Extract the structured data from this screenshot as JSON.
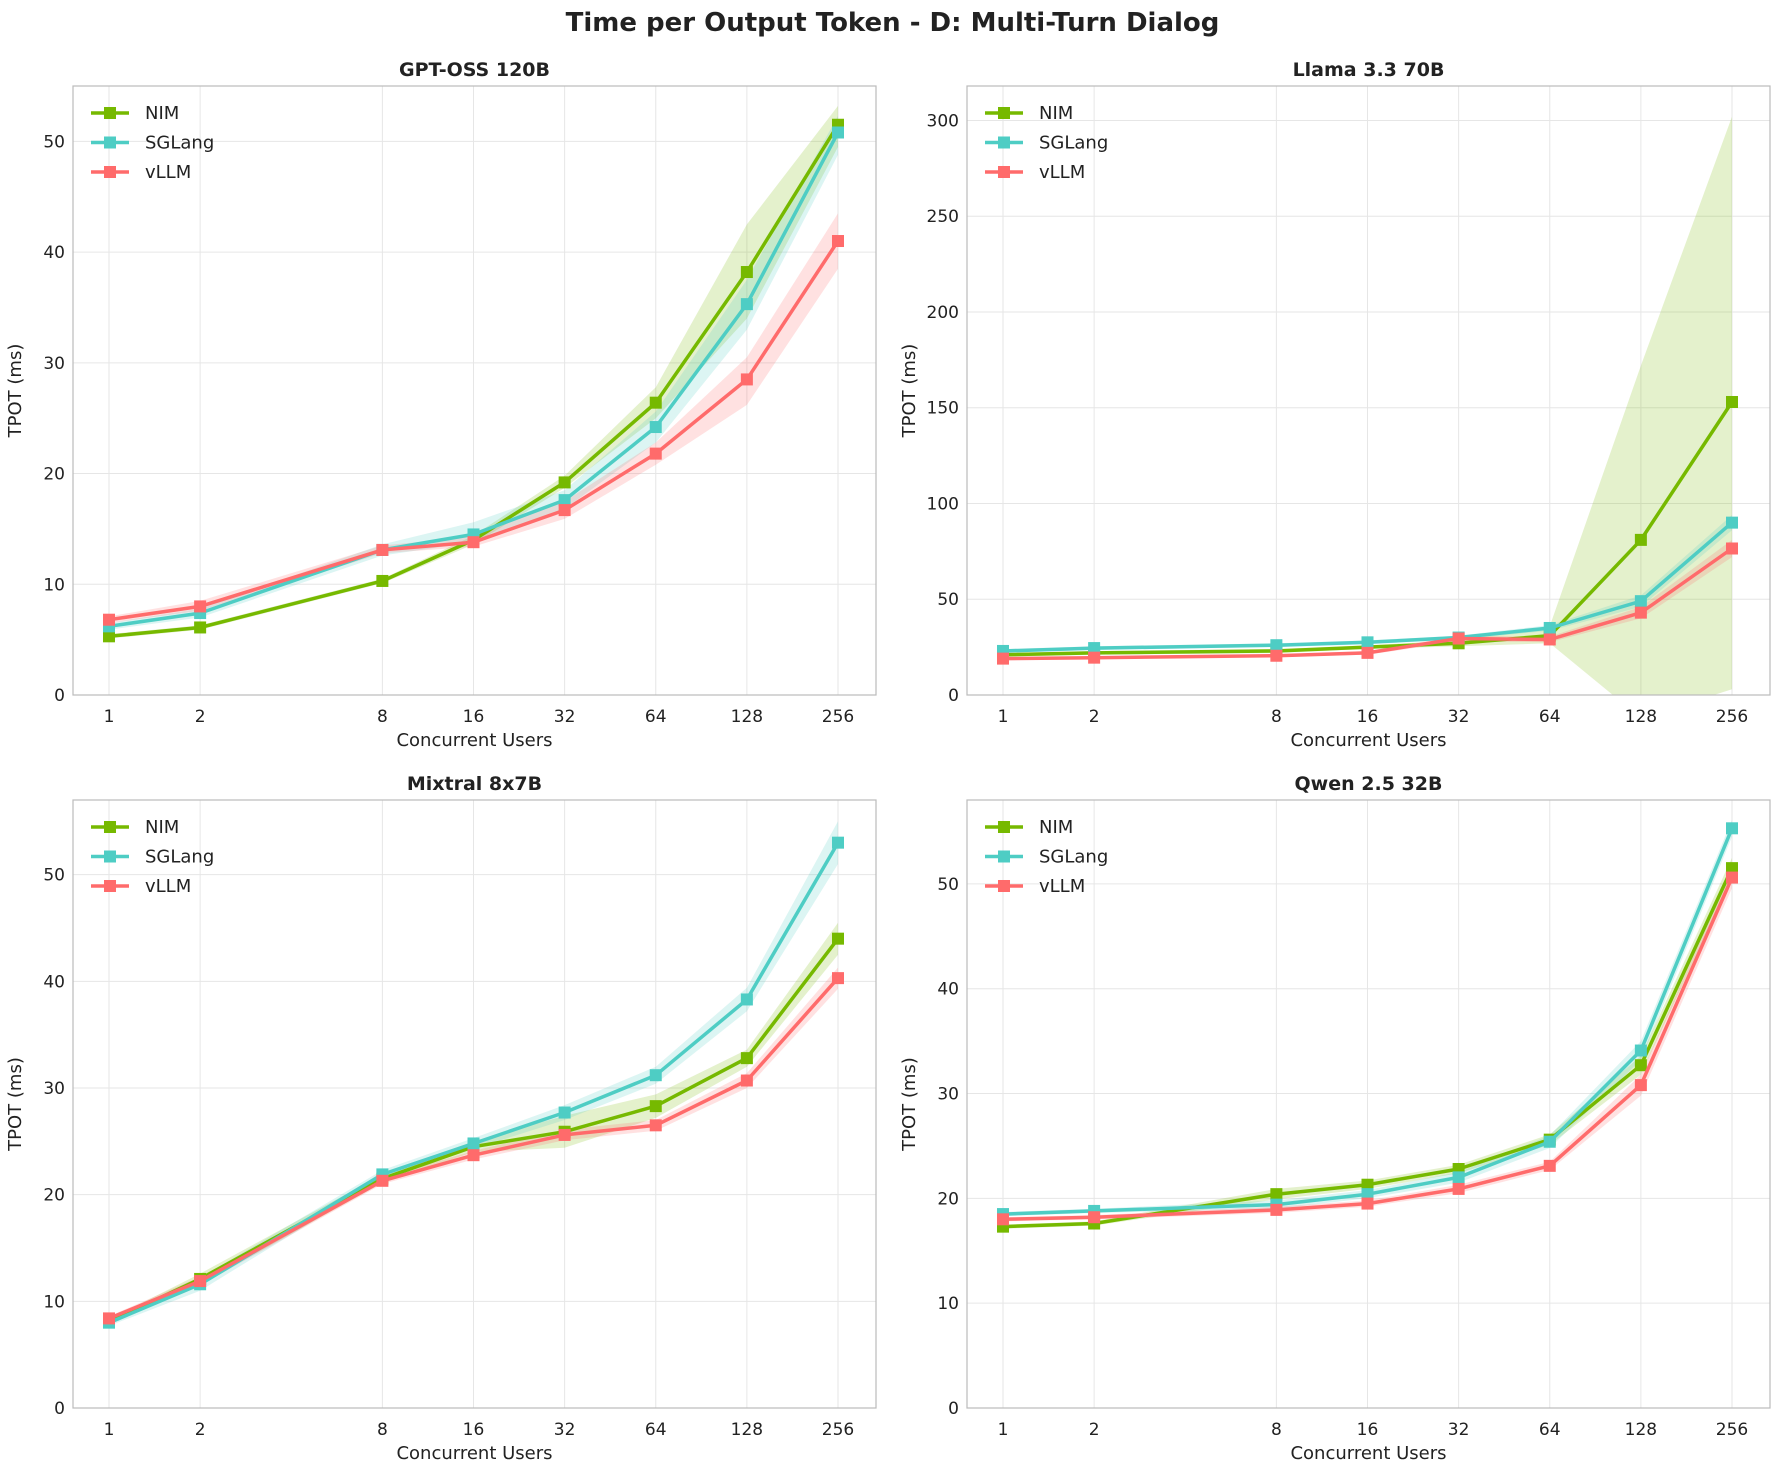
{
  "title": "Time per Output Token - D: Multi-Turn Dialog",
  "colors": {
    "NIM": "#76b900",
    "SGLang": "#4ecdc4",
    "vLLM": "#ff6b6b"
  },
  "chart_data": [
    {
      "type": "line",
      "title": "GPT-OSS 120B",
      "xlabel": "Concurrent Users",
      "ylabel": "TPOT (ms)",
      "x_scale": "log2",
      "x": [
        1,
        2,
        8,
        16,
        32,
        64,
        128,
        256
      ],
      "x_tick_labels": [
        "1",
        "2",
        "8",
        "16",
        "32",
        "64",
        "128",
        "256"
      ],
      "ylim": [
        0,
        55
      ],
      "yticks": [
        0,
        10,
        20,
        30,
        40,
        50
      ],
      "grid": true,
      "legend": "top-left",
      "series": [
        {
          "name": "NIM",
          "values": [
            5.3,
            6.1,
            10.3,
            14.0,
            19.2,
            26.4,
            38.2,
            51.5
          ],
          "band": [
            [
              5.1,
              5.5
            ],
            [
              5.9,
              6.3
            ],
            [
              10.1,
              10.5
            ],
            [
              13.6,
              14.4
            ],
            [
              18.7,
              19.8
            ],
            [
              25.0,
              27.8
            ],
            [
              34.0,
              42.5
            ],
            [
              49.5,
              53.2
            ]
          ]
        },
        {
          "name": "SGLang",
          "values": [
            6.2,
            7.4,
            13.1,
            14.5,
            17.6,
            24.2,
            35.3,
            50.8
          ],
          "band": [
            [
              5.9,
              6.5
            ],
            [
              7.0,
              7.8
            ],
            [
              12.6,
              13.6
            ],
            [
              13.8,
              15.6
            ],
            [
              16.8,
              18.5
            ],
            [
              22.8,
              25.6
            ],
            [
              33.0,
              37.5
            ],
            [
              48.8,
              52.3
            ]
          ]
        },
        {
          "name": "vLLM",
          "values": [
            6.8,
            8.0,
            13.1,
            13.8,
            16.7,
            21.8,
            28.5,
            41.0
          ],
          "band": [
            [
              6.5,
              7.1
            ],
            [
              7.6,
              8.5
            ],
            [
              12.8,
              13.5
            ],
            [
              13.4,
              14.3
            ],
            [
              15.9,
              17.5
            ],
            [
              20.8,
              22.8
            ],
            [
              26.2,
              30.5
            ],
            [
              38.5,
              43.5
            ]
          ]
        }
      ]
    },
    {
      "type": "line",
      "title": "Llama 3.3 70B",
      "xlabel": "Concurrent Users",
      "ylabel": "TPOT (ms)",
      "x_scale": "log2",
      "x": [
        1,
        2,
        8,
        16,
        32,
        64,
        128,
        256
      ],
      "x_tick_labels": [
        "1",
        "2",
        "8",
        "16",
        "32",
        "64",
        "128",
        "256"
      ],
      "ylim": [
        0,
        318
      ],
      "yticks": [
        0,
        50,
        100,
        150,
        200,
        250,
        300
      ],
      "grid": true,
      "legend": "top-left",
      "series": [
        {
          "name": "NIM",
          "values": [
            21.0,
            22.0,
            23.0,
            25.0,
            27.0,
            31.0,
            81.0,
            153.0
          ],
          "band": [
            [
              20.0,
              22.0
            ],
            [
              21.0,
              23.0
            ],
            [
              22.0,
              24.0
            ],
            [
              24.0,
              26.0
            ],
            [
              25.5,
              28.5
            ],
            [
              27.0,
              36.0
            ],
            [
              -12.0,
              172.0
            ],
            [
              3.0,
              302.0
            ]
          ]
        },
        {
          "name": "SGLang",
          "values": [
            23.0,
            24.5,
            26.0,
            27.5,
            30.0,
            35.0,
            49.0,
            90.0
          ],
          "band": [
            [
              22.0,
              24.0
            ],
            [
              23.5,
              25.5
            ],
            [
              25.0,
              27.0
            ],
            [
              26.5,
              28.5
            ],
            [
              29.0,
              31.0
            ],
            [
              33.5,
              36.5
            ],
            [
              46.0,
              52.0
            ],
            [
              86.0,
              94.0
            ]
          ]
        },
        {
          "name": "vLLM",
          "values": [
            19.0,
            19.5,
            20.5,
            22.0,
            29.5,
            29.0,
            43.0,
            76.5
          ],
          "band": [
            [
              18.5,
              19.5
            ],
            [
              19.0,
              20.0
            ],
            [
              20.0,
              21.0
            ],
            [
              21.0,
              23.0
            ],
            [
              28.0,
              31.0
            ],
            [
              27.5,
              30.5
            ],
            [
              40.0,
              46.0
            ],
            [
              72.0,
              81.0
            ]
          ]
        }
      ]
    },
    {
      "type": "line",
      "title": "Mixtral 8x7B",
      "xlabel": "Concurrent Users",
      "ylabel": "TPOT (ms)",
      "x_scale": "log2",
      "x": [
        1,
        2,
        8,
        16,
        32,
        64,
        128,
        256
      ],
      "x_tick_labels": [
        "1",
        "2",
        "8",
        "16",
        "32",
        "64",
        "128",
        "256"
      ],
      "ylim": [
        0,
        57
      ],
      "yticks": [
        0,
        10,
        20,
        30,
        40,
        50
      ],
      "grid": true,
      "legend": "top-left",
      "series": [
        {
          "name": "NIM",
          "values": [
            8.1,
            12.1,
            21.5,
            24.5,
            25.9,
            28.3,
            32.8,
            44.0
          ],
          "band": [
            [
              7.9,
              8.3
            ],
            [
              11.6,
              12.6
            ],
            [
              21.1,
              21.9
            ],
            [
              24.0,
              25.0
            ],
            [
              24.4,
              27.4
            ],
            [
              27.2,
              29.4
            ],
            [
              32.0,
              33.6
            ],
            [
              42.5,
              45.5
            ]
          ]
        },
        {
          "name": "SGLang",
          "values": [
            8.0,
            11.6,
            21.9,
            24.8,
            27.7,
            31.2,
            38.3,
            53.0
          ],
          "band": [
            [
              7.7,
              8.3
            ],
            [
              11.0,
              12.2
            ],
            [
              21.5,
              22.3
            ],
            [
              24.3,
              25.3
            ],
            [
              27.0,
              28.4
            ],
            [
              30.4,
              32.0
            ],
            [
              37.2,
              39.4
            ],
            [
              51.0,
              55.0
            ]
          ]
        },
        {
          "name": "vLLM",
          "values": [
            8.4,
            11.9,
            21.3,
            23.7,
            25.6,
            26.5,
            30.7,
            40.3
          ],
          "band": [
            [
              8.2,
              8.6
            ],
            [
              11.5,
              12.3
            ],
            [
              21.0,
              21.6
            ],
            [
              23.3,
              24.1
            ],
            [
              25.1,
              26.1
            ],
            [
              26.0,
              27.0
            ],
            [
              30.0,
              31.4
            ],
            [
              39.3,
              41.3
            ]
          ]
        }
      ]
    },
    {
      "type": "line",
      "title": "Qwen 2.5 32B",
      "xlabel": "Concurrent Users",
      "ylabel": "TPOT (ms)",
      "x_scale": "log2",
      "x": [
        1,
        2,
        8,
        16,
        32,
        64,
        128,
        256
      ],
      "x_tick_labels": [
        "1",
        "2",
        "8",
        "16",
        "32",
        "64",
        "128",
        "256"
      ],
      "ylim": [
        0,
        58
      ],
      "yticks": [
        0,
        10,
        20,
        30,
        40,
        50
      ],
      "grid": true,
      "legend": "top-left",
      "series": [
        {
          "name": "NIM",
          "values": [
            17.3,
            17.6,
            20.4,
            21.3,
            22.8,
            25.6,
            32.7,
            51.5
          ],
          "band": [
            [
              17.1,
              17.5
            ],
            [
              17.4,
              17.8
            ],
            [
              19.9,
              20.9
            ],
            [
              20.9,
              21.7
            ],
            [
              22.4,
              23.2
            ],
            [
              25.1,
              26.1
            ],
            [
              31.8,
              33.6
            ],
            [
              50.5,
              52.5
            ]
          ]
        },
        {
          "name": "SGLang",
          "values": [
            18.5,
            18.8,
            19.4,
            20.4,
            22.0,
            25.4,
            34.1,
            55.3
          ],
          "band": [
            [
              18.3,
              18.7
            ],
            [
              18.6,
              19.0
            ],
            [
              19.0,
              19.8
            ],
            [
              20.0,
              20.8
            ],
            [
              21.5,
              22.5
            ],
            [
              24.8,
              26.0
            ],
            [
              33.2,
              35.0
            ],
            [
              54.5,
              56.1
            ]
          ]
        },
        {
          "name": "vLLM",
          "values": [
            18.0,
            18.2,
            18.9,
            19.5,
            20.9,
            23.1,
            30.8,
            50.6
          ],
          "band": [
            [
              17.8,
              18.2
            ],
            [
              18.0,
              18.4
            ],
            [
              18.6,
              19.2
            ],
            [
              19.2,
              19.8
            ],
            [
              20.5,
              21.3
            ],
            [
              22.7,
              23.5
            ],
            [
              29.8,
              31.8
            ],
            [
              49.6,
              51.6
            ]
          ]
        }
      ]
    }
  ]
}
